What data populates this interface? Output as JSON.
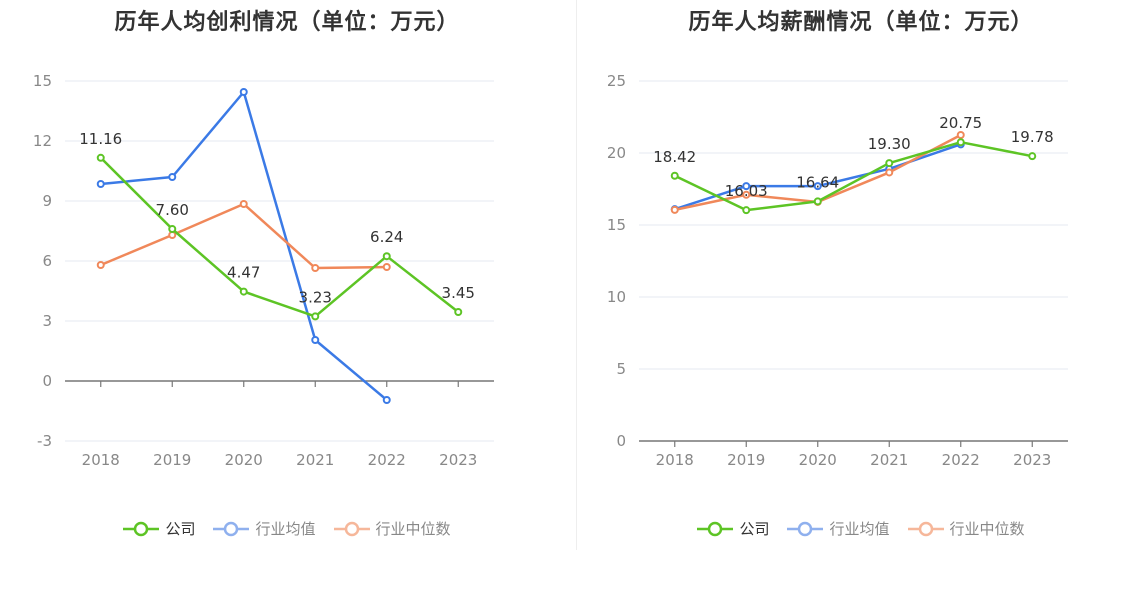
{
  "colors": {
    "company": "#5dc425",
    "industry_avg": "#3b7ae6",
    "industry_median": "#f0885a",
    "grid": "#e6e9f2",
    "axis": "#666666"
  },
  "legend": {
    "company": "公司",
    "industry_avg": "行业均值",
    "industry_median": "行业中位数"
  },
  "chart_data": [
    {
      "type": "line",
      "title": "历年人均创利情况（单位：万元）",
      "categories": [
        "2018",
        "2019",
        "2020",
        "2021",
        "2022",
        "2023"
      ],
      "ylim": [
        -3,
        15
      ],
      "yticks": [
        "15",
        "12",
        "9",
        "6",
        "3",
        "0",
        "-3"
      ],
      "grid": true,
      "legend_position": "bottom-center",
      "series": [
        {
          "key": "company",
          "name": "公司",
          "values": [
            11.16,
            7.6,
            4.47,
            3.23,
            6.24,
            3.45
          ],
          "labels": [
            "11.16",
            "7.60",
            "4.47",
            "3.23",
            "6.24",
            "3.45"
          ]
        },
        {
          "key": "industry_avg",
          "name": "行业均值",
          "values": [
            9.85,
            10.2,
            14.45,
            2.05,
            -0.95,
            null
          ]
        },
        {
          "key": "industry_median",
          "name": "行业中位数",
          "values": [
            5.8,
            7.3,
            8.85,
            5.65,
            5.7,
            null
          ]
        }
      ]
    },
    {
      "type": "line",
      "title": "历年人均薪酬情况（单位：万元）",
      "categories": [
        "2018",
        "2019",
        "2020",
        "2021",
        "2022",
        "2023"
      ],
      "ylim": [
        0,
        25
      ],
      "yticks": [
        "25",
        "20",
        "15",
        "10",
        "5",
        "0"
      ],
      "grid": true,
      "legend_position": "bottom-center",
      "series": [
        {
          "key": "company",
          "name": "公司",
          "values": [
            18.42,
            16.03,
            16.64,
            19.3,
            20.75,
            19.78
          ],
          "labels": [
            "18.42",
            "16.03",
            "16.64",
            "19.30",
            "20.75",
            "19.78"
          ]
        },
        {
          "key": "industry_avg",
          "name": "行业均值",
          "values": [
            16.1,
            17.7,
            17.7,
            18.9,
            20.6,
            null
          ]
        },
        {
          "key": "industry_median",
          "name": "行业中位数",
          "values": [
            16.05,
            17.1,
            16.6,
            18.65,
            21.25,
            null
          ]
        }
      ]
    }
  ]
}
